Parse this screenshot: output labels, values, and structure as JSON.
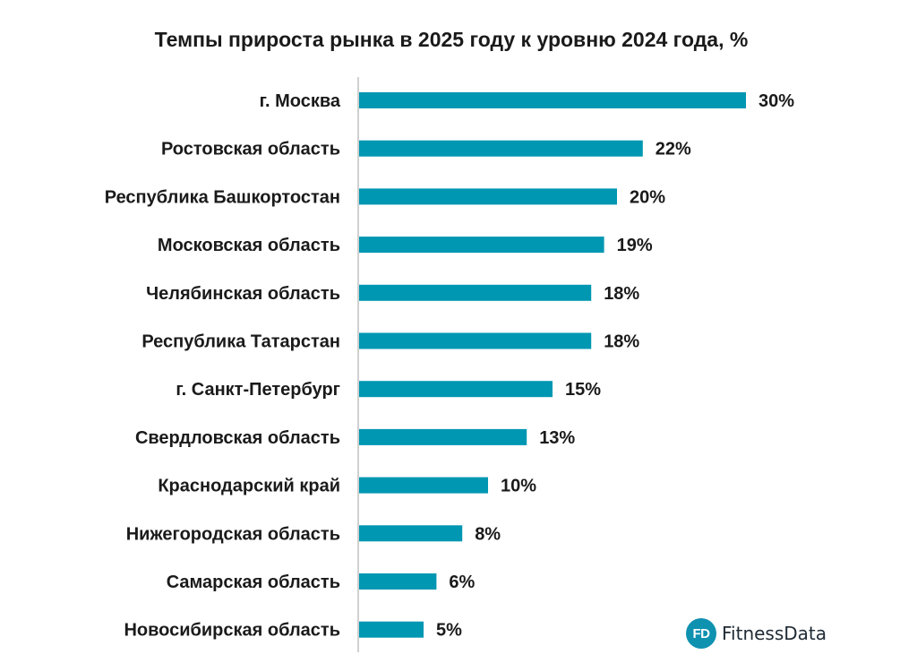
{
  "chart_data": {
    "type": "bar",
    "orientation": "horizontal",
    "title": "Темпы прироста рынка в 2025 году к уровню 2024 года, %",
    "categories": [
      "г. Москва",
      "Ростовская область",
      "Республика Башкортостан",
      "Московская область",
      "Челябинская область",
      "Республика Татарстан",
      "г. Санкт-Петербург",
      "Свердловская область",
      "Краснодарский край",
      "Нижегородская область",
      "Самарская область",
      "Новосибирская область"
    ],
    "values": [
      30,
      22,
      20,
      19,
      18,
      18,
      15,
      13,
      10,
      8,
      6,
      5
    ],
    "value_labels": [
      "30%",
      "22%",
      "20%",
      "19%",
      "18%",
      "18%",
      "15%",
      "13%",
      "10%",
      "8%",
      "6%",
      "5%"
    ],
    "xlim": [
      0,
      30
    ],
    "xlabel": "",
    "ylabel": "",
    "grid": false,
    "bar_color": "#0097b2"
  },
  "branding": {
    "badge_text": "FD",
    "name": "FitnessData",
    "badge_color": "#0f91b0"
  },
  "colors": {
    "axis_line": "#d0d0d0",
    "text": "#1a1a1a"
  }
}
